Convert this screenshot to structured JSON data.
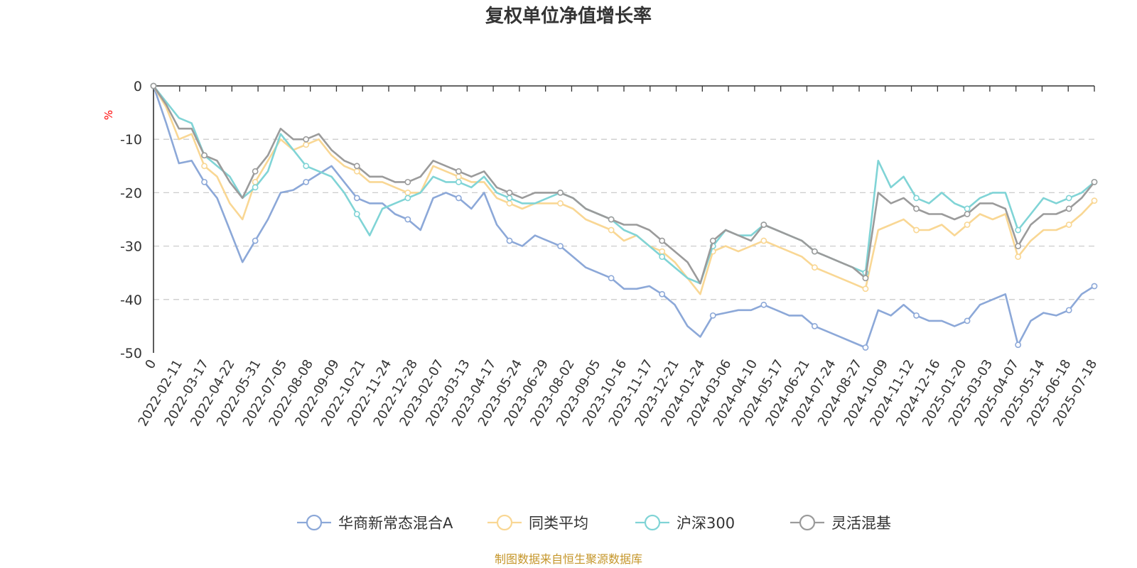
{
  "chart_data": {
    "type": "line",
    "title": "复权单位净值增长率",
    "ylabel": "%",
    "ylim": [
      -50,
      0
    ],
    "yticks": [
      0,
      -10,
      -20,
      -30,
      -40,
      -50
    ],
    "y_grid": true,
    "legend_position": "bottom-center",
    "x_tick_labels": [
      "0",
      "2022-02-11",
      "2022-03-17",
      "2022-04-22",
      "2022-05-31",
      "2022-07-05",
      "2022-08-08",
      "2022-09-09",
      "2022-10-21",
      "2022-11-24",
      "2022-12-28",
      "2023-02-07",
      "2023-03-13",
      "2023-04-17",
      "2023-05-24",
      "2023-06-29",
      "2023-08-02",
      "2023-09-05",
      "2023-10-16",
      "2023-11-17",
      "2023-12-21",
      "2024-01-24",
      "2024-03-06",
      "2024-04-10",
      "2024-05-17",
      "2024-06-21",
      "2024-07-24",
      "2024-08-27",
      "2024-10-09",
      "2024-11-12",
      "2024-12-16",
      "2025-01-20",
      "2025-03-03",
      "2025-04-07",
      "2025-05-14",
      "2025-06-18",
      "2025-07-18"
    ],
    "x": [
      "2022-01-04",
      "2022-01-18",
      "2022-02-11",
      "2022-02-25",
      "2022-03-17",
      "2022-03-31",
      "2022-04-22",
      "2022-04-27",
      "2022-05-31",
      "2022-06-15",
      "2022-07-05",
      "2022-07-20",
      "2022-08-08",
      "2022-08-22",
      "2022-09-09",
      "2022-09-26",
      "2022-10-21",
      "2022-11-08",
      "2022-11-24",
      "2022-12-12",
      "2022-12-28",
      "2023-01-16",
      "2023-02-07",
      "2023-02-22",
      "2023-03-13",
      "2023-03-28",
      "2023-04-17",
      "2023-05-05",
      "2023-05-24",
      "2023-06-12",
      "2023-06-29",
      "2023-07-17",
      "2023-08-02",
      "2023-08-18",
      "2023-09-05",
      "2023-09-21",
      "2023-10-16",
      "2023-11-01",
      "2023-11-17",
      "2023-12-05",
      "2023-12-21",
      "2024-01-09",
      "2024-01-24",
      "2024-02-05",
      "2024-03-06",
      "2024-03-22",
      "2024-04-10",
      "2024-04-26",
      "2024-05-17",
      "2024-06-04",
      "2024-06-21",
      "2024-07-09",
      "2024-07-24",
      "2024-08-09",
      "2024-08-27",
      "2024-09-20",
      "2024-09-30",
      "2024-10-09",
      "2024-10-25",
      "2024-11-12",
      "2024-11-28",
      "2024-12-16",
      "2024-12-31",
      "2025-01-20",
      "2025-02-12",
      "2025-03-03",
      "2025-03-20",
      "2025-04-03",
      "2025-04-07",
      "2025-04-24",
      "2025-05-14",
      "2025-05-30",
      "2025-06-18",
      "2025-07-03",
      "2025-07-18"
    ],
    "series": [
      {
        "name": "华商新常态混合A",
        "color": "#8ca8d8",
        "values": [
          0,
          -7,
          -14.5,
          -14,
          -18,
          -21,
          -27,
          -33,
          -29,
          -25,
          -20,
          -19.5,
          -18,
          -16.5,
          -15,
          -18,
          -21,
          -22,
          -22,
          -24,
          -25,
          -27,
          -21,
          -20,
          -21,
          -23,
          -20,
          -26,
          -29,
          -30,
          -28,
          -29,
          -30,
          -32,
          -34,
          -35,
          -36,
          -38,
          -38,
          -37.5,
          -39,
          -41,
          -45,
          -47,
          -43,
          -42.5,
          -42,
          -42,
          -41,
          -42,
          -43,
          -43,
          -45,
          -46,
          -47,
          -48,
          -49,
          -42,
          -43,
          -41,
          -43,
          -44,
          -44,
          -45,
          -44,
          -41,
          -40,
          -39,
          -48.5,
          -44,
          -42.5,
          -43,
          -42,
          -39,
          -37.5
        ]
      },
      {
        "name": "同类平均",
        "color": "#f9d794",
        "values": [
          0,
          -4,
          -10,
          -9,
          -15,
          -17,
          -22,
          -25,
          -18,
          -14,
          -10,
          -12,
          -11,
          -10,
          -13,
          -15,
          -16,
          -18,
          -18,
          -19,
          -20,
          -20,
          -15,
          -16,
          -17,
          -18,
          -18,
          -21,
          -22,
          -23,
          -22,
          -22,
          -22,
          -23,
          -25,
          -26,
          -27,
          -29,
          -28,
          -30,
          -31,
          -33,
          -36,
          -39,
          -31,
          -30,
          -31,
          -30,
          -29,
          -30,
          -31,
          -32,
          -34,
          -35,
          -36,
          -37,
          -38,
          -27,
          -26,
          -25,
          -27,
          -27,
          -26,
          -28,
          -26,
          -24,
          -25,
          -24,
          -32,
          -29,
          -27,
          -27,
          -26,
          -24,
          -21.5
        ]
      },
      {
        "name": "沪深300",
        "color": "#80d4d6",
        "values": [
          0,
          -3,
          -6,
          -7,
          -13,
          -15,
          -17,
          -21,
          -19,
          -16,
          -9,
          -12,
          -15,
          -16,
          -17,
          -20,
          -24,
          -28,
          -23,
          -22,
          -21,
          -20,
          -17,
          -18,
          -18,
          -19,
          -17,
          -20,
          -21,
          -22,
          -22,
          -21,
          -20,
          -21,
          -23,
          -24,
          -25,
          -27,
          -28,
          -30,
          -32,
          -34,
          -36,
          -37,
          -30,
          -27,
          -28,
          -28,
          -26,
          -27,
          -28,
          -29,
          -31,
          -32,
          -33,
          -34,
          -35,
          -14,
          -19,
          -17,
          -21,
          -22,
          -20,
          -22,
          -23,
          -21,
          -20,
          -20,
          -27,
          -24,
          -21,
          -22,
          -21,
          -20,
          -18
        ]
      },
      {
        "name": "灵活混基",
        "color": "#9b9b9b",
        "values": [
          0,
          -3.5,
          -8,
          -8,
          -13,
          -14,
          -18,
          -21,
          -16,
          -13,
          -8,
          -10,
          -10,
          -9,
          -12,
          -14,
          -15,
          -17,
          -17,
          -18,
          -18,
          -17,
          -14,
          -15,
          -16,
          -17,
          -16,
          -19,
          -20,
          -21,
          -20,
          -20,
          -20,
          -21,
          -23,
          -24,
          -25,
          -26,
          -26,
          -27,
          -29,
          -31,
          -33,
          -37,
          -29,
          -27,
          -28,
          -29,
          -26,
          -27,
          -28,
          -29,
          -31,
          -32,
          -33,
          -34,
          -36,
          -20,
          -22,
          -21,
          -23,
          -24,
          -24,
          -25,
          -24,
          -22,
          -22,
          -23,
          -30,
          -26,
          -24,
          -24,
          -23,
          -21,
          -18
        ]
      }
    ],
    "source_note": "制图数据来自恒生聚源数据库"
  }
}
